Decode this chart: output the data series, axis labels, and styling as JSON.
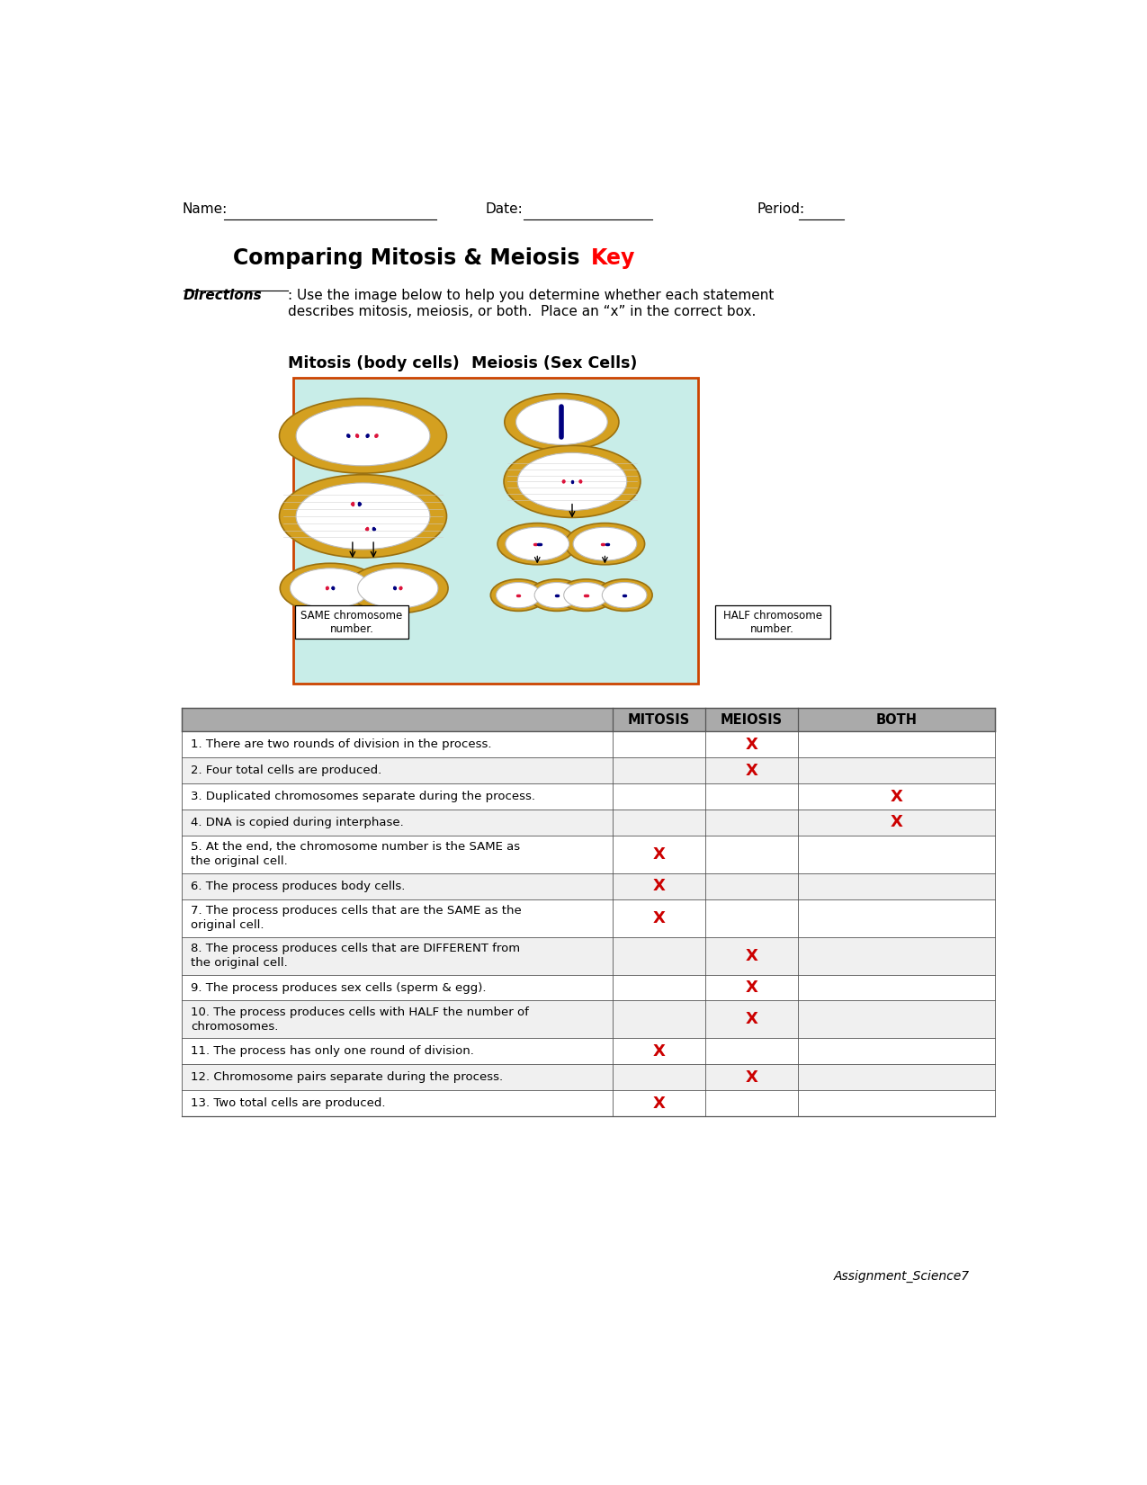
{
  "title_black": "Comparing Mitosis & Meiosis ",
  "title_red": "Key",
  "name_label": "Name:",
  "date_label": "Date:",
  "period_label": "Period:",
  "directions_bold": "Directions",
  "directions_text": ": Use the image below to help you determine whether each statement\ndescribes mitosis, meiosis, or both.  Place an “x” in the correct box.",
  "mitosis_label": "Mitosis (body cells)",
  "meiosis_label": "Meiosis (Sex Cells)",
  "same_label": "SAME chromosome\nnumber.",
  "half_label": "HALF chromosome\nnumber.",
  "col_headers": [
    "MITOSIS",
    "MEIOSIS",
    "BOTH"
  ],
  "rows": [
    {
      "text": "1. There are two rounds of division in the process.",
      "mitosis": false,
      "meiosis": true,
      "both": false
    },
    {
      "text": "2. Four total cells are produced.",
      "mitosis": false,
      "meiosis": true,
      "both": false
    },
    {
      "text": "3. Duplicated chromosomes separate during the process.",
      "mitosis": false,
      "meiosis": false,
      "both": true
    },
    {
      "text": "4. DNA is copied during interphase.",
      "mitosis": false,
      "meiosis": false,
      "both": true
    },
    {
      "text": "5. At the end, the chromosome number is the SAME as\nthe original cell.",
      "mitosis": true,
      "meiosis": false,
      "both": false
    },
    {
      "text": "6. The process produces body cells.",
      "mitosis": true,
      "meiosis": false,
      "both": false
    },
    {
      "text": "7. The process produces cells that are the SAME as the\noriginal cell.",
      "mitosis": true,
      "meiosis": false,
      "both": false
    },
    {
      "text": "8. The process produces cells that are DIFFERENT from\nthe original cell.",
      "mitosis": false,
      "meiosis": true,
      "both": false
    },
    {
      "text": "9. The process produces sex cells (sperm & egg).",
      "mitosis": false,
      "meiosis": true,
      "both": false
    },
    {
      "text": "10. The process produces cells with HALF the number of\nchromosomes.",
      "mitosis": false,
      "meiosis": true,
      "both": false
    },
    {
      "text": "11. The process has only one round of division.",
      "mitosis": true,
      "meiosis": false,
      "both": false
    },
    {
      "text": "12. Chromosome pairs separate during the process.",
      "mitosis": false,
      "meiosis": true,
      "both": false
    },
    {
      "text": "13. Two total cells are produced.",
      "mitosis": true,
      "meiosis": false,
      "both": false
    }
  ],
  "header_bg": "#aaaaaa",
  "row_bg_odd": "#ffffff",
  "row_bg_even": "#f0f0f0",
  "x_color": "#cc0000",
  "border_color": "#555555",
  "footer": "Assignment_Science7",
  "bg_color": "#ffffff",
  "image_bg": "#c8ede8",
  "cell_outer_color": "#d4a020",
  "cell_inner_color": "#ffffff"
}
